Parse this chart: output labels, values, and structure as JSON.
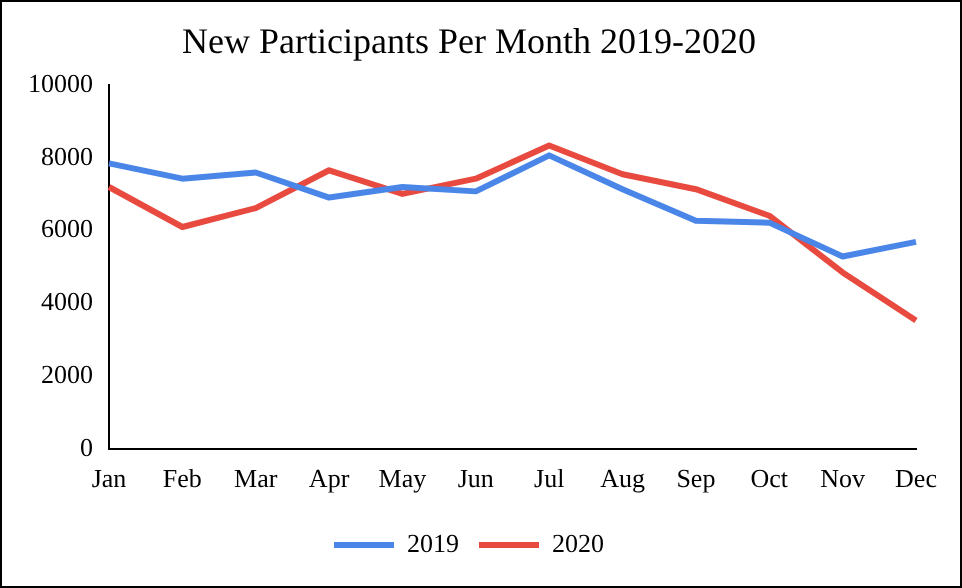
{
  "chart_data": {
    "type": "line",
    "title": "New Participants Per Month 2019-2020",
    "categories": [
      "Jan",
      "Feb",
      "Mar",
      "Apr",
      "May",
      "Jun",
      "Jul",
      "Aug",
      "Sep",
      "Oct",
      "Nov",
      "Dec"
    ],
    "series": [
      {
        "name": "2019",
        "color": "#4a86e8",
        "values": [
          7850,
          7430,
          7600,
          6910,
          7200,
          7080,
          8070,
          7140,
          6270,
          6220,
          5290,
          5690
        ]
      },
      {
        "name": "2020",
        "color": "#e84a3f",
        "values": [
          7200,
          6100,
          6620,
          7660,
          7010,
          7430,
          8340,
          7550,
          7140,
          6410,
          4850,
          3530
        ]
      }
    ],
    "ylim": [
      0,
      10000
    ],
    "yticks": [
      0,
      2000,
      4000,
      6000,
      8000,
      10000
    ],
    "grid": false,
    "legend": "bottom",
    "marker": "none",
    "line_style": "solid"
  }
}
